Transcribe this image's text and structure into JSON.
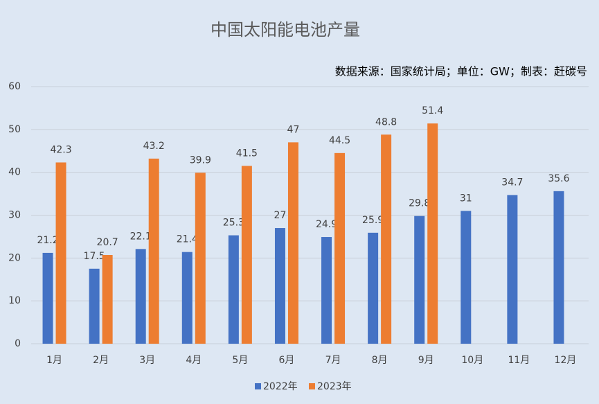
{
  "chart_data": {
    "type": "bar",
    "title": "中国太阳能电池产量",
    "subtitle": "数据来源：国家统计局；单位：GW；制表：赶碳号",
    "categories": [
      "1月",
      "2月",
      "3月",
      "4月",
      "5月",
      "6月",
      "7月",
      "8月",
      "9月",
      "10月",
      "11月",
      "12月"
    ],
    "series": [
      {
        "name": "2022年",
        "color": "#4472c4",
        "values": [
          21.2,
          17.5,
          22.1,
          21.4,
          25.3,
          27,
          24.9,
          25.9,
          29.8,
          31,
          34.7,
          35.6
        ]
      },
      {
        "name": "2023年",
        "color": "#ed7d31",
        "values": [
          42.3,
          20.7,
          43.2,
          39.9,
          41.5,
          47,
          44.5,
          48.8,
          51.4,
          null,
          null,
          null
        ]
      }
    ],
    "ylim": [
      0,
      60
    ],
    "yticks": [
      0,
      10,
      20,
      30,
      40,
      50,
      60
    ],
    "grid": true,
    "legend": "bottom"
  }
}
